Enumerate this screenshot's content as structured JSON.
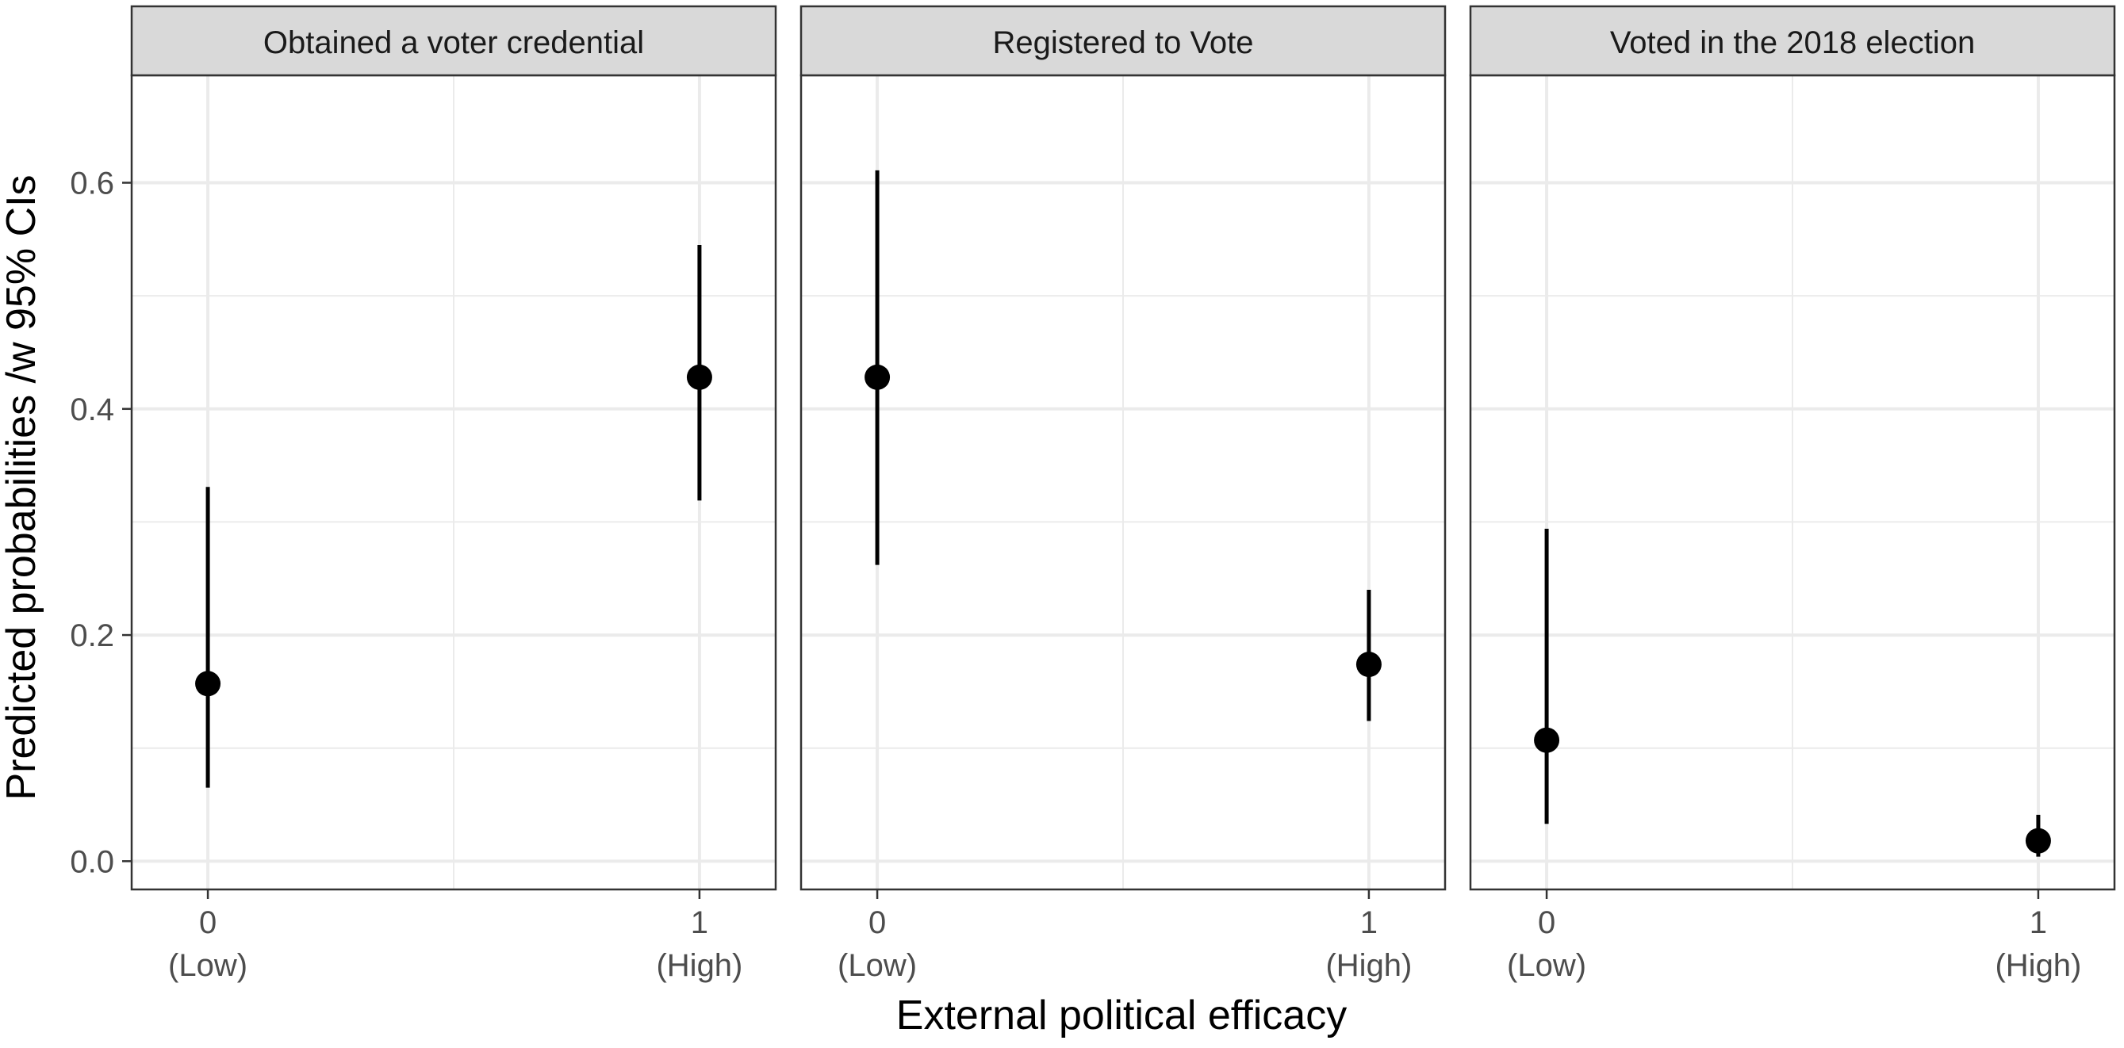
{
  "chart_data": {
    "type": "scatter",
    "subtype": "point-range (point estimates with error bars), faceted",
    "ylabel": "Predicted probabilities /w 95% CIs",
    "xlabel": "External political efficacy",
    "ylim": [
      -0.025,
      0.695
    ],
    "y_ticks": [
      0.0,
      0.2,
      0.4,
      0.6
    ],
    "y_tick_labels": [
      "0.0",
      "0.2",
      "0.4",
      "0.6"
    ],
    "x_categories": [
      {
        "value": 0,
        "line1": "0",
        "line2": "(Low)"
      },
      {
        "value": 1,
        "line1": "1",
        "line2": "(High)"
      }
    ],
    "xlim": [
      -0.155,
      1.155
    ],
    "grid": true,
    "legend": "none",
    "point_color": "#000000",
    "panel_border_color": "#333333",
    "strip_fill": "#d9d9d9",
    "grid_color": "#ebebeb",
    "facets": [
      {
        "title": "Obtained a voter credential",
        "points": [
          {
            "x": 0,
            "y": 0.157,
            "lower": 0.065,
            "upper": 0.331
          },
          {
            "x": 1,
            "y": 0.428,
            "lower": 0.319,
            "upper": 0.545
          }
        ]
      },
      {
        "title": "Registered to Vote",
        "points": [
          {
            "x": 0,
            "y": 0.428,
            "lower": 0.262,
            "upper": 0.611
          },
          {
            "x": 1,
            "y": 0.174,
            "lower": 0.124,
            "upper": 0.24
          }
        ]
      },
      {
        "title": "Voted in the 2018 election",
        "points": [
          {
            "x": 0,
            "y": 0.107,
            "lower": 0.033,
            "upper": 0.294
          },
          {
            "x": 1,
            "y": 0.018,
            "lower": 0.004,
            "upper": 0.041
          }
        ]
      }
    ]
  }
}
